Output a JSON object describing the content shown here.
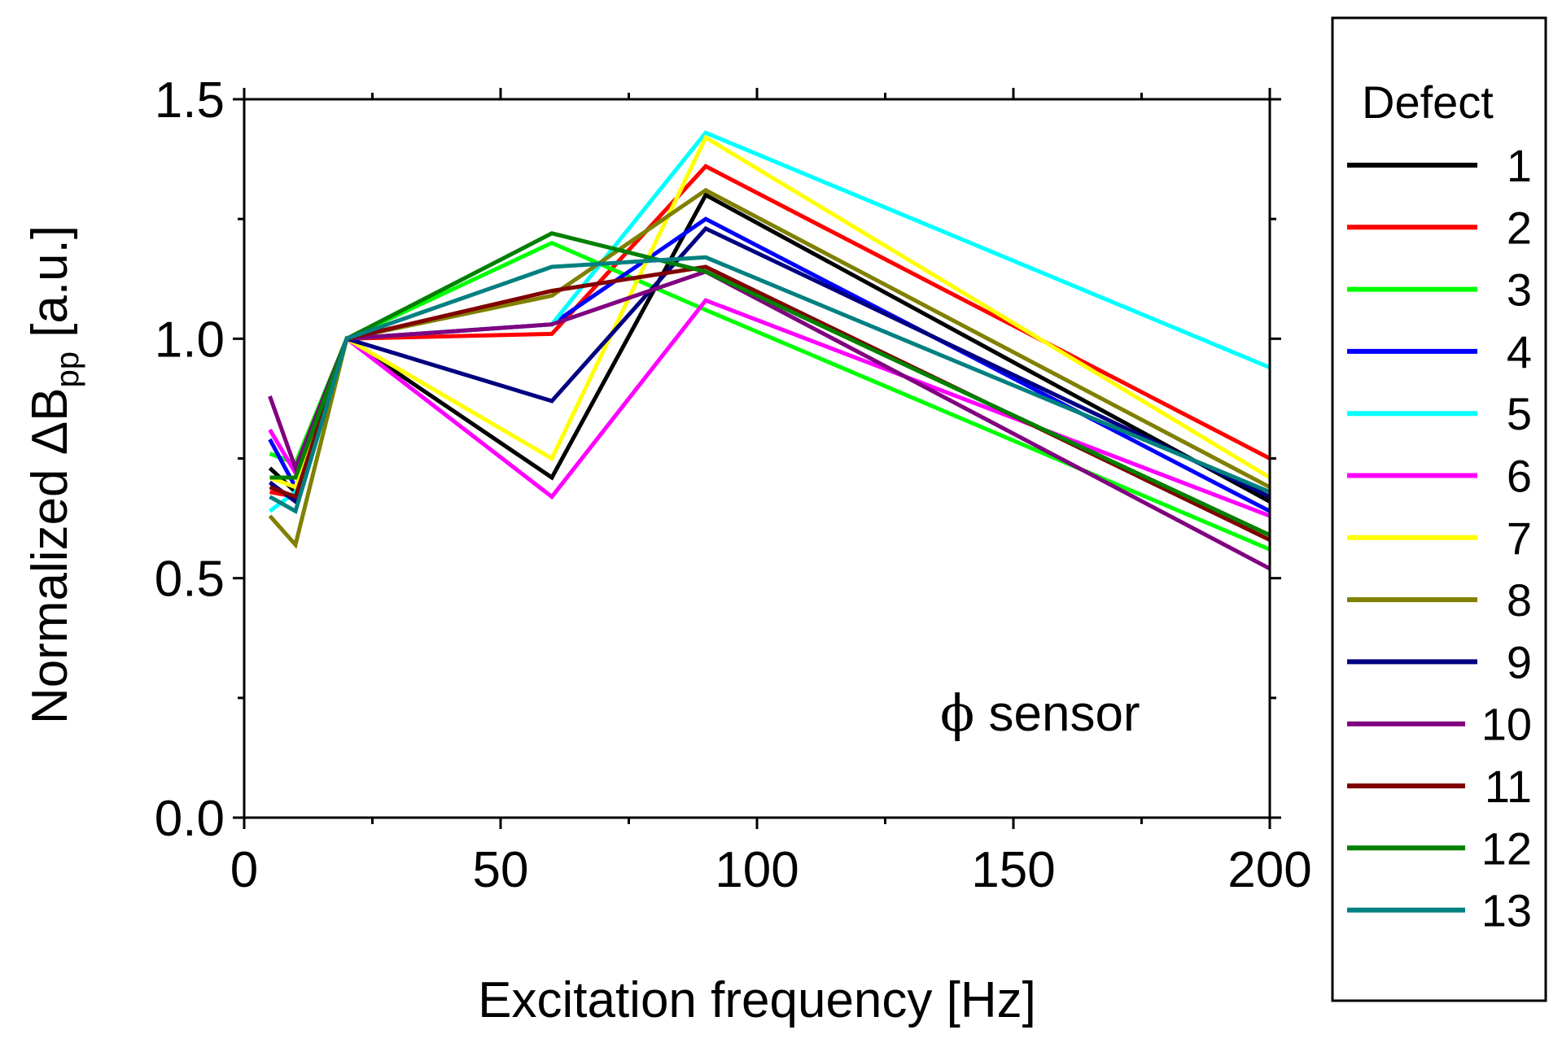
{
  "chart_data": {
    "type": "line",
    "xlabel": "Excitation frequency [Hz]",
    "ylabel_main": "Normalized ",
    "ylabel_symbol": "ΔB",
    "ylabel_sub": "pp",
    "ylabel_unit": " [a.u.]",
    "annotation_symbol": "ϕ",
    "annotation_text": " sensor",
    "xlim": [
      0,
      200
    ],
    "ylim": [
      0.0,
      1.5
    ],
    "x_ticks": [
      0,
      50,
      100,
      150,
      200
    ],
    "x_tick_labels": [
      "0",
      "50",
      "100",
      "150",
      "200"
    ],
    "x_minor_ticks": [
      25,
      75,
      125,
      175
    ],
    "y_ticks": [
      0.0,
      0.5,
      1.0,
      1.5
    ],
    "y_tick_labels": [
      "0.0",
      "0.5",
      "1.0",
      "1.5"
    ],
    "y_minor_ticks": [
      0.25,
      0.75,
      1.25
    ],
    "legend_title": "Defect",
    "legend_position": "right, outside plot",
    "x": [
      5,
      10,
      20,
      60,
      90,
      200
    ],
    "series": [
      {
        "name": "1",
        "color": "#000000",
        "values": [
          0.73,
          0.68,
          1.0,
          0.71,
          1.3,
          0.66
        ]
      },
      {
        "name": "2",
        "color": "#ff0000",
        "values": [
          0.68,
          0.67,
          1.0,
          1.01,
          1.36,
          0.75
        ]
      },
      {
        "name": "3",
        "color": "#00ff00",
        "values": [
          0.76,
          0.74,
          1.0,
          1.2,
          1.06,
          0.56
        ]
      },
      {
        "name": "4",
        "color": "#0000ff",
        "values": [
          0.79,
          0.69,
          1.0,
          1.03,
          1.25,
          0.64
        ]
      },
      {
        "name": "5",
        "color": "#00ffff",
        "values": [
          0.64,
          0.68,
          1.0,
          1.03,
          1.43,
          0.94
        ]
      },
      {
        "name": "6",
        "color": "#ff00ff",
        "values": [
          0.81,
          0.72,
          1.0,
          0.67,
          1.08,
          0.63
        ]
      },
      {
        "name": "7",
        "color": "#ffff00",
        "values": [
          0.71,
          0.69,
          1.0,
          0.75,
          1.42,
          0.71
        ]
      },
      {
        "name": "8",
        "color": "#808000",
        "values": [
          0.63,
          0.57,
          1.0,
          1.09,
          1.31,
          0.69
        ]
      },
      {
        "name": "9",
        "color": "#000080",
        "values": [
          0.7,
          0.66,
          1.0,
          0.87,
          1.23,
          0.67
        ]
      },
      {
        "name": "10",
        "color": "#800080",
        "values": [
          0.88,
          0.73,
          1.0,
          1.03,
          1.14,
          0.52
        ]
      },
      {
        "name": "11",
        "color": "#800000",
        "values": [
          0.69,
          0.67,
          1.0,
          1.1,
          1.15,
          0.58
        ]
      },
      {
        "name": "12",
        "color": "#008000",
        "values": [
          0.71,
          0.71,
          1.0,
          1.22,
          1.14,
          0.59
        ]
      },
      {
        "name": "13",
        "color": "#008080",
        "values": [
          0.67,
          0.64,
          1.0,
          1.15,
          1.17,
          0.68
        ]
      }
    ]
  }
}
